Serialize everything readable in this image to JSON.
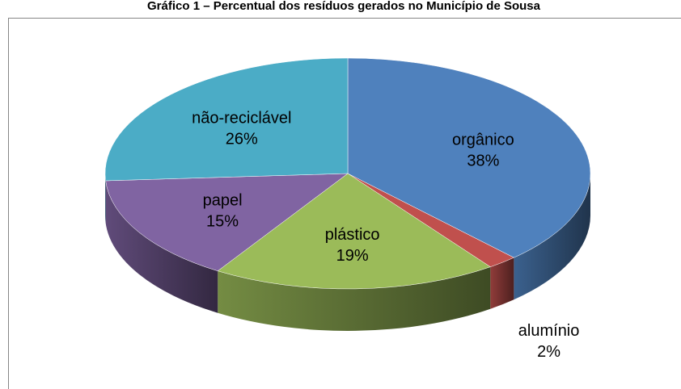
{
  "chart_data": {
    "type": "pie3d",
    "title": "Gráfico 1 – Percentual dos resíduos gerados no Município de Sousa",
    "categories": [
      "orgânico",
      "alumínio",
      "plástico",
      "papel",
      "não-reciclável"
    ],
    "values": [
      38,
      2,
      19,
      15,
      26
    ],
    "value_labels": [
      "38%",
      "2%",
      "19%",
      "15%",
      "26%"
    ],
    "colors": [
      "#4f81bd",
      "#c0504d",
      "#9bbb59",
      "#8064a2",
      "#4bacc6"
    ]
  }
}
